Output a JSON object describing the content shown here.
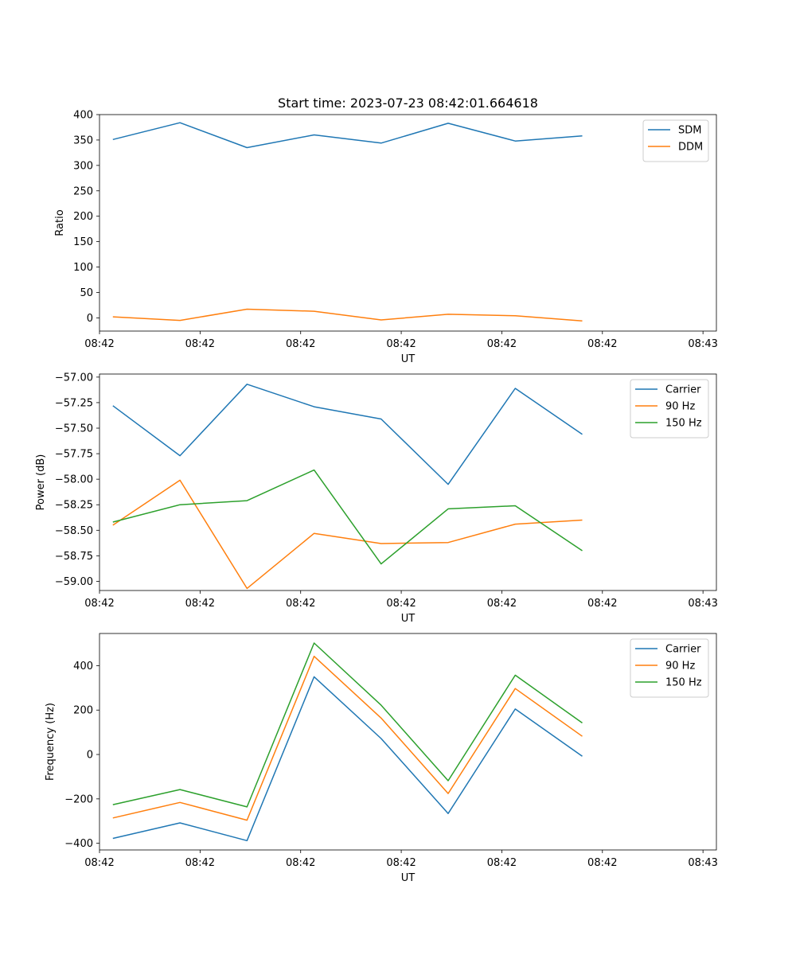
{
  "chart_data": [
    {
      "type": "line",
      "title": "Start time: 2023-07-23 08:42:01.664618",
      "xlabel": "UT",
      "ylabel": "Ratio",
      "x": [
        1,
        2,
        3,
        4,
        5,
        6,
        7,
        8
      ],
      "xlim": [
        0.8,
        10.0
      ],
      "xticks": [
        {
          "pos": 0.8,
          "label": "08:42"
        },
        {
          "pos": 2.3,
          "label": "08:42"
        },
        {
          "pos": 3.8,
          "label": "08:42"
        },
        {
          "pos": 5.3,
          "label": "08:42"
        },
        {
          "pos": 6.8,
          "label": "08:42"
        },
        {
          "pos": 8.3,
          "label": "08:42"
        },
        {
          "pos": 9.8,
          "label": "08:43"
        }
      ],
      "ylim": [
        -26,
        400
      ],
      "yticks": [
        0,
        50,
        100,
        150,
        200,
        250,
        300,
        350,
        400
      ],
      "ytick_labels": [
        "0",
        "50",
        "100",
        "150",
        "200",
        "250",
        "300",
        "350",
        "400"
      ],
      "legend_position": "top-right",
      "series": [
        {
          "name": "SDM",
          "color": "#1f77b4",
          "values": [
            351,
            384,
            335,
            360,
            344,
            383,
            348,
            358
          ]
        },
        {
          "name": "DDM",
          "color": "#ff7f0e",
          "values": [
            2,
            -5,
            17,
            13,
            -4,
            7,
            4,
            -6
          ]
        }
      ]
    },
    {
      "type": "line",
      "title": "",
      "xlabel": "UT",
      "ylabel": "Power (dB)",
      "x": [
        1,
        2,
        3,
        4,
        5,
        6,
        7,
        8
      ],
      "xlim": [
        0.8,
        10.0
      ],
      "xticks": [
        {
          "pos": 0.8,
          "label": "08:42"
        },
        {
          "pos": 2.3,
          "label": "08:42"
        },
        {
          "pos": 3.8,
          "label": "08:42"
        },
        {
          "pos": 5.3,
          "label": "08:42"
        },
        {
          "pos": 6.8,
          "label": "08:42"
        },
        {
          "pos": 8.3,
          "label": "08:42"
        },
        {
          "pos": 9.8,
          "label": "08:43"
        }
      ],
      "ylim": [
        -59.09,
        -56.97
      ],
      "yticks": [
        -59.0,
        -58.75,
        -58.5,
        -58.25,
        -58.0,
        -57.75,
        -57.5,
        -57.25,
        -57.0
      ],
      "ytick_labels": [
        "−59.00",
        "−58.75",
        "−58.50",
        "−58.25",
        "−58.00",
        "−57.75",
        "−57.50",
        "−57.25",
        "−57.00"
      ],
      "legend_position": "top-right",
      "series": [
        {
          "name": "Carrier",
          "color": "#1f77b4",
          "values": [
            -57.28,
            -57.77,
            -57.07,
            -57.29,
            -57.41,
            -58.05,
            -57.11,
            -57.56
          ]
        },
        {
          "name": "90 Hz",
          "color": "#ff7f0e",
          "values": [
            -58.45,
            -58.01,
            -59.07,
            -58.53,
            -58.63,
            -58.62,
            -58.44,
            -58.4
          ]
        },
        {
          "name": "150 Hz",
          "color": "#2ca02c",
          "values": [
            -58.42,
            -58.25,
            -58.21,
            -57.91,
            -58.83,
            -58.29,
            -58.26,
            -58.7
          ]
        }
      ]
    },
    {
      "type": "line",
      "title": "",
      "xlabel": "UT",
      "ylabel": "Frequency (Hz)",
      "x": [
        1,
        2,
        3,
        4,
        5,
        6,
        7,
        8
      ],
      "xlim": [
        0.8,
        10.0
      ],
      "xticks": [
        {
          "pos": 0.8,
          "label": "08:42"
        },
        {
          "pos": 2.3,
          "label": "08:42"
        },
        {
          "pos": 3.8,
          "label": "08:42"
        },
        {
          "pos": 5.3,
          "label": "08:42"
        },
        {
          "pos": 6.8,
          "label": "08:42"
        },
        {
          "pos": 8.3,
          "label": "08:42"
        },
        {
          "pos": 9.8,
          "label": "08:43"
        }
      ],
      "ylim": [
        -430,
        545
      ],
      "yticks": [
        -400,
        -200,
        0,
        200,
        400
      ],
      "ytick_labels": [
        "−400",
        "−200",
        "0",
        "200",
        "400"
      ],
      "legend_position": "top-right",
      "series": [
        {
          "name": "Carrier",
          "color": "#1f77b4",
          "values": [
            -378,
            -308,
            -388,
            350,
            72,
            -266,
            205,
            -8
          ]
        },
        {
          "name": "90 Hz",
          "color": "#ff7f0e",
          "values": [
            -286,
            -216,
            -296,
            442,
            164,
            -176,
            297,
            82
          ]
        },
        {
          "name": "150 Hz",
          "color": "#2ca02c",
          "values": [
            -226,
            -158,
            -236,
            502,
            222,
            -118,
            357,
            142
          ]
        }
      ]
    }
  ]
}
